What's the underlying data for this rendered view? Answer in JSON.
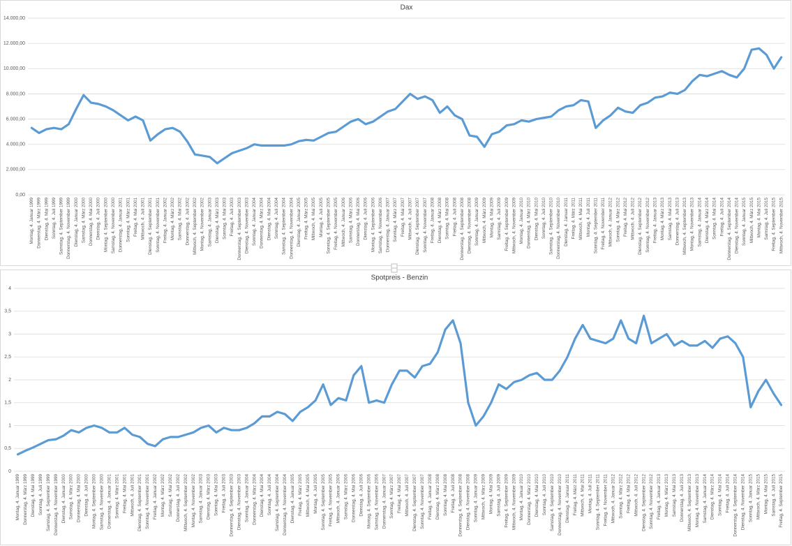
{
  "chart_data": [
    {
      "type": "line",
      "title": "Dax",
      "color": "#5b9bd5",
      "ylim": [
        0,
        14000
      ],
      "yticks": [
        {
          "value": 0,
          "label": "0,00"
        },
        {
          "value": 2000,
          "label": "2.000,00"
        },
        {
          "value": 4000,
          "label": "4.000,00"
        },
        {
          "value": 6000,
          "label": "6.000,00"
        },
        {
          "value": 8000,
          "label": "8.000,00"
        },
        {
          "value": 10000,
          "label": "10.000,00"
        },
        {
          "value": 12000,
          "label": "12.000,00"
        },
        {
          "value": 14000,
          "label": "14.000,00"
        }
      ],
      "grid": true,
      "categories": [
        "Montag, 4. Januar 1999",
        "Donnerstag, 4. März 1999",
        "Dienstag, 4. Mai 1999",
        "Sonntag, 4. Juli 1999",
        "Samstag, 4. September 1999",
        "Donnerstag, 4. November 1999",
        "Dienstag, 4. Januar 2000",
        "Samstag, 4. März 2000",
        "Donnerstag, 4. Mai 2000",
        "Dienstag, 4. Juli 2000",
        "Montag, 4. September 2000",
        "Samstag, 4. November 2000",
        "Donnerstag, 4. Januar 2001",
        "Sonntag, 4. März 2001",
        "Freitag, 4. Mai 2001",
        "Mittwoch, 4. Juli 2001",
        "Dienstag, 4. September 2001",
        "Sonntag, 4. November 2001",
        "Freitag, 4. Januar 2002",
        "Montag, 4. März 2002",
        "Samstag, 4. Mai 2002",
        "Donnerstag, 4. Juli 2002",
        "Mittwoch, 4. September 2002",
        "Montag, 4. November 2002",
        "Samstag, 4. Januar 2003",
        "Dienstag, 4. März 2003",
        "Sonntag, 4. Mai 2003",
        "Freitag, 4. Juli 2003",
        "Donnerstag, 4. September 2003",
        "Dienstag, 4. November 2003",
        "Sonntag, 4. Januar 2004",
        "Donnerstag, 4. März 2004",
        "Dienstag, 4. Mai 2004",
        "Sonntag, 4. Juli 2004",
        "Samstag, 4. September 2004",
        "Donnerstag, 4. November 2004",
        "Dienstag, 4. Januar 2005",
        "Freitag, 4. März 2005",
        "Mittwoch, 4. Mai 2005",
        "Montag, 4. Juli 2005",
        "Sonntag, 4. September 2005",
        "Freitag, 4. November 2005",
        "Mittwoch, 4. Januar 2006",
        "Samstag, 4. März 2006",
        "Donnerstag, 4. Mai 2006",
        "Dienstag, 4. Juli 2006",
        "Montag, 4. September 2006",
        "Samstag, 4. November 2006",
        "Donnerstag, 4. Januar 2007",
        "Sonntag, 4. März 2007",
        "Freitag, 4. Mai 2007",
        "Mittwoch, 4. Juli 2007",
        "Dienstag, 4. September 2007",
        "Sonntag, 4. November 2007",
        "Freitag, 4. Januar 2008",
        "Dienstag, 4. März 2008",
        "Sonntag, 4. Mai 2008",
        "Freitag, 4. Juli 2008",
        "Donnerstag, 4. September 2008",
        "Dienstag, 4. November 2008",
        "Sonntag, 4. Januar 2009",
        "Mittwoch, 4. März 2009",
        "Montag, 4. Mai 2009",
        "Samstag, 4. Juli 2009",
        "Freitag, 4. September 2009",
        "Mittwoch, 4. November 2009",
        "Montag, 4. Januar 2010",
        "Donnerstag, 4. März 2010",
        "Dienstag, 4. Mai 2010",
        "Sonntag, 4. Juli 2010",
        "Samstag, 4. September 2010",
        "Donnerstag, 4. November 2010",
        "Dienstag, 4. Januar 2011",
        "Freitag, 4. März 2011",
        "Mittwoch, 4. Mai 2011",
        "Montag, 4. Juli 2011",
        "Sonntag, 4. September 2011",
        "Freitag, 4. November 2011",
        "Mittwoch, 4. Januar 2012",
        "Sonntag, 4. März 2012",
        "Freitag, 4. Mai 2012",
        "Mittwoch, 4. Juli 2012",
        "Dienstag, 4. September 2012",
        "Sonntag, 4. November 2012",
        "Freitag, 4. Januar 2013",
        "Montag, 4. März 2013",
        "Samstag, 4. Mai 2013",
        "Donnerstag, 4. Juli 2013",
        "Mittwoch, 4. September 2013",
        "Montag, 4. November 2013",
        "Samstag, 4. Januar 2014",
        "Dienstag, 4. März 2014",
        "Sonntag, 4. Mai 2014",
        "Freitag, 4. Juli 2014",
        "Donnerstag, 4. September 2014",
        "Dienstag, 4. November 2014",
        "Sonntag, 4. Januar 2015",
        "Mittwoch, 4. März 2015",
        "Montag, 4. Mai 2015",
        "Samstag, 4. Juli 2015",
        "Freitag, 4. September 2015",
        "Mittwoch, 4. November 2015"
      ],
      "values": [
        5300,
        4900,
        5200,
        5300,
        5200,
        5600,
        6800,
        7900,
        7300,
        7200,
        7000,
        6700,
        6300,
        5900,
        6200,
        5900,
        4300,
        4800,
        5200,
        5300,
        5000,
        4200,
        3200,
        3100,
        3000,
        2500,
        2900,
        3300,
        3500,
        3700,
        4000,
        3900,
        3900,
        3900,
        3900,
        4000,
        4250,
        4350,
        4300,
        4600,
        4900,
        5000,
        5400,
        5800,
        6000,
        5600,
        5800,
        6200,
        6600,
        6800,
        7400,
        8000,
        7600,
        7800,
        7500,
        6500,
        7000,
        6300,
        6000,
        4700,
        4600,
        3800,
        4800,
        5000,
        5500,
        5600,
        5900,
        5800,
        6000,
        6100,
        6200,
        6700,
        7000,
        7100,
        7500,
        7400,
        5300,
        5900,
        6300,
        6900,
        6600,
        6500,
        7100,
        7300,
        7700,
        7800,
        8100,
        8000,
        8300,
        9000,
        9500,
        9400,
        9600,
        9800,
        9500,
        9300,
        10000,
        11500,
        11600,
        11100,
        10000,
        10900
      ]
    },
    {
      "type": "line",
      "title": "Spotpreis - Benzin",
      "color": "#5b9bd5",
      "ylim": [
        0,
        4
      ],
      "yticks": [
        0,
        {
          "value": 0.5,
          "label": "0,5"
        },
        1,
        {
          "value": 1.5,
          "label": "1,5"
        },
        2,
        {
          "value": 2.5,
          "label": "2,5"
        },
        3,
        {
          "value": 3.5,
          "label": "3,5"
        },
        4
      ],
      "grid": true,
      "categories": [
        "Montag, 4. Januar 1999",
        "Donnerstag, 4. März 1999",
        "Dienstag, 4. Mai 1999",
        "Sonntag, 4. Juli 1999",
        "Samstag, 4. September 1999",
        "Donnerstag, 4. November 1999",
        "Dienstag, 4. Januar 2000",
        "Samstag, 4. März 2000",
        "Donnerstag, 4. Mai 2000",
        "Dienstag, 4. Juli 2000",
        "Montag, 4. September 2000",
        "Samstag, 4. November 2000",
        "Donnerstag, 4. Januar 2001",
        "Sonntag, 4. März 2001",
        "Freitag, 4. Mai 2001",
        "Mittwoch, 4. Juli 2001",
        "Dienstag, 4. September 2001",
        "Sonntag, 4. November 2001",
        "Freitag, 4. Januar 2002",
        "Montag, 4. März 2002",
        "Samstag, 4. Mai 2002",
        "Donnerstag, 4. Juli 2002",
        "Mittwoch, 4. September 2002",
        "Montag, 4. November 2002",
        "Samstag, 4. Januar 2003",
        "Dienstag, 4. März 2003",
        "Sonntag, 4. Mai 2003",
        "Freitag, 4. Juli 2003",
        "Donnerstag, 4. September 2003",
        "Dienstag, 4. November 2003",
        "Sonntag, 4. Januar 2004",
        "Donnerstag, 4. März 2004",
        "Dienstag, 4. Mai 2004",
        "Sonntag, 4. Juli 2004",
        "Samstag, 4. September 2004",
        "Donnerstag, 4. November 2004",
        "Dienstag, 4. Januar 2005",
        "Freitag, 4. März 2005",
        "Mittwoch, 4. Mai 2005",
        "Montag, 4. Juli 2005",
        "Sonntag, 4. September 2005",
        "Freitag, 4. November 2005",
        "Mittwoch, 4. Januar 2006",
        "Samstag, 4. März 2006",
        "Donnerstag, 4. Mai 2006",
        "Dienstag, 4. Juli 2006",
        "Montag, 4. September 2006",
        "Samstag, 4. November 2006",
        "Donnerstag, 4. Januar 2007",
        "Sonntag, 4. März 2007",
        "Freitag, 4. Mai 2007",
        "Mittwoch, 4. Juli 2007",
        "Dienstag, 4. September 2007",
        "Sonntag, 4. November 2007",
        "Freitag, 4. Januar 2008",
        "Dienstag, 4. März 2008",
        "Sonntag, 4. Mai 2008",
        "Freitag, 4. Juli 2008",
        "Donnerstag, 4. September 2008",
        "Dienstag, 4. November 2008",
        "Sonntag, 4. Januar 2009",
        "Mittwoch, 4. März 2009",
        "Montag, 4. Mai 2009",
        "Samstag, 4. Juli 2009",
        "Freitag, 4. September 2009",
        "Mittwoch, 4. November 2009",
        "Montag, 4. Januar 2010",
        "Donnerstag, 4. März 2010",
        "Dienstag, 4. Mai 2010",
        "Sonntag, 4. Juli 2010",
        "Samstag, 4. September 2010",
        "Donnerstag, 4. November 2010",
        "Dienstag, 4. Januar 2011",
        "Freitag, 4. März 2011",
        "Mittwoch, 4. Mai 2011",
        "Montag, 4. Juli 2011",
        "Sonntag, 4. September 2011",
        "Freitag, 4. November 2011",
        "Mittwoch, 4. Januar 2012",
        "Sonntag, 4. März 2012",
        "Freitag, 4. Mai 2012",
        "Mittwoch, 4. Juli 2012",
        "Dienstag, 4. September 2012",
        "Sonntag, 4. November 2012",
        "Freitag, 4. Januar 2013",
        "Montag, 4. März 2013",
        "Samstag, 4. Mai 2013",
        "Donnerstag, 4. Juli 2013",
        "Mittwoch, 4. September 2013",
        "Montag, 4. November 2013",
        "Samstag, 4. Januar 2014",
        "Dienstag, 4. März 2014",
        "Sonntag, 4. Mai 2014",
        "Freitag, 4. Juli 2014",
        "Donnerstag, 4. September 2014",
        "Dienstag, 4. November 2014",
        "Sonntag, 4. Januar 2015",
        "Mittwoch, 4. März 2015",
        "Montag, 4. Mai 2015",
        "Samstag, 4. Juli 2015",
        "Freitag, 4. September 2015"
      ],
      "values": [
        0.37,
        0.45,
        0.52,
        0.6,
        0.68,
        0.7,
        0.78,
        0.9,
        0.85,
        0.95,
        1.0,
        0.95,
        0.85,
        0.85,
        0.95,
        0.8,
        0.75,
        0.6,
        0.55,
        0.7,
        0.75,
        0.75,
        0.8,
        0.85,
        0.95,
        1.0,
        0.85,
        0.95,
        0.9,
        0.9,
        0.95,
        1.05,
        1.2,
        1.2,
        1.3,
        1.25,
        1.1,
        1.3,
        1.4,
        1.55,
        1.9,
        1.45,
        1.6,
        1.55,
        2.1,
        2.3,
        1.5,
        1.55,
        1.5,
        1.9,
        2.2,
        2.2,
        2.05,
        2.3,
        2.35,
        2.6,
        3.1,
        3.3,
        2.8,
        1.5,
        1.0,
        1.2,
        1.5,
        1.9,
        1.8,
        1.95,
        2.0,
        2.1,
        2.15,
        2.0,
        2.0,
        2.2,
        2.5,
        2.9,
        3.2,
        2.9,
        2.85,
        2.8,
        2.9,
        3.3,
        2.9,
        2.8,
        3.4,
        2.8,
        2.9,
        3.0,
        2.75,
        2.85,
        2.75,
        2.75,
        2.85,
        2.7,
        2.9,
        2.95,
        2.8,
        2.5,
        1.4,
        1.75,
        2.0,
        1.7,
        1.45
      ]
    }
  ]
}
